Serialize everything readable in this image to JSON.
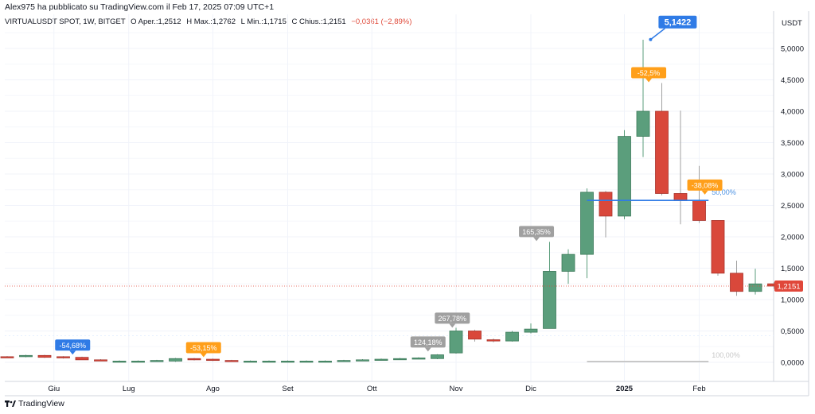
{
  "header": {
    "text": "Alex975 ha pubblicato su TradingView.com il Feb 17, 2025 07:09 UTC+1"
  },
  "legend": {
    "symbol": "VIRTUALUSDT SPOT, 1W, BITGET",
    "open_label": "O",
    "open_value": "Aper.:1,2512",
    "high_label": "H",
    "high_value": "Max.:1,2762",
    "low_label": "L",
    "low_value": "Min.:1,1715",
    "close_label": "C",
    "close_value": "Chius.:1,2151",
    "change": "−0,0361 (−2,89%)"
  },
  "axis": {
    "currency": "USDT"
  },
  "brand": {
    "name": "TradingView"
  },
  "colors": {
    "up": "#5b9e7c",
    "down": "#d9483b",
    "blue": "#2f7be6",
    "orange": "#ff9f1a",
    "gray": "#a0a0a0",
    "last_price": "#e0473a"
  },
  "chart_data": {
    "type": "candlestick",
    "interval": "1W",
    "y_axis": {
      "position": "right",
      "min": 0,
      "max": 5.25,
      "ticks": [
        0,
        0.5,
        1,
        1.5,
        2,
        2.5,
        3,
        3.5,
        4,
        4.5,
        5
      ],
      "tick_labels": [
        "0,0000",
        "0,5000",
        "1,0000",
        "1,5000",
        "2,0000",
        "2,5000",
        "3,0000",
        "3,5000",
        "4,0000",
        "4,5000",
        "5,0000"
      ]
    },
    "x_axis": {
      "labels": [
        {
          "text": "Giu",
          "index": 2.5
        },
        {
          "text": "Lug",
          "index": 6.5
        },
        {
          "text": "Ago",
          "index": 11
        },
        {
          "text": "Set",
          "index": 15
        },
        {
          "text": "Ott",
          "index": 19.5
        },
        {
          "text": "Nov",
          "index": 24
        },
        {
          "text": "Dic",
          "index": 28
        },
        {
          "text": "2025",
          "index": 33,
          "bold": true
        },
        {
          "text": "Feb",
          "index": 37
        }
      ]
    },
    "candles": [
      {
        "o": 0.09,
        "h": 0.1,
        "l": 0.07,
        "c": 0.08
      },
      {
        "o": 0.09,
        "h": 0.12,
        "l": 0.08,
        "c": 0.11
      },
      {
        "o": 0.11,
        "h": 0.12,
        "l": 0.07,
        "c": 0.08
      },
      {
        "o": 0.09,
        "h": 0.1,
        "l": 0.06,
        "c": 0.08
      },
      {
        "o": 0.08,
        "h": 0.09,
        "l": 0.05,
        "c": 0.04
      },
      {
        "o": 0.04,
        "h": 0.05,
        "l": 0.03,
        "c": 0.03
      },
      {
        "o": 0.02,
        "h": 0.03,
        "l": 0.01,
        "c": 0.02
      },
      {
        "o": 0.02,
        "h": 0.03,
        "l": 0.01,
        "c": 0.02
      },
      {
        "o": 0.02,
        "h": 0.04,
        "l": 0.01,
        "c": 0.03
      },
      {
        "o": 0.02,
        "h": 0.07,
        "l": 0.01,
        "c": 0.06
      },
      {
        "o": 0.06,
        "h": 0.07,
        "l": 0.03,
        "c": 0.04
      },
      {
        "o": 0.05,
        "h": 0.06,
        "l": 0.02,
        "c": 0.03
      },
      {
        "o": 0.03,
        "h": 0.04,
        "l": 0.01,
        "c": 0.02
      },
      {
        "o": 0.02,
        "h": 0.03,
        "l": 0.01,
        "c": 0.02
      },
      {
        "o": 0.02,
        "h": 0.03,
        "l": 0.01,
        "c": 0.02
      },
      {
        "o": 0.02,
        "h": 0.03,
        "l": 0.01,
        "c": 0.02
      },
      {
        "o": 0.02,
        "h": 0.03,
        "l": 0.01,
        "c": 0.02
      },
      {
        "o": 0.02,
        "h": 0.03,
        "l": 0.01,
        "c": 0.02
      },
      {
        "o": 0.02,
        "h": 0.04,
        "l": 0.01,
        "c": 0.03
      },
      {
        "o": 0.03,
        "h": 0.05,
        "l": 0.02,
        "c": 0.04
      },
      {
        "o": 0.04,
        "h": 0.06,
        "l": 0.03,
        "c": 0.05
      },
      {
        "o": 0.05,
        "h": 0.07,
        "l": 0.04,
        "c": 0.06
      },
      {
        "o": 0.06,
        "h": 0.08,
        "l": 0.05,
        "c": 0.07
      },
      {
        "o": 0.06,
        "h": 0.13,
        "l": 0.05,
        "c": 0.12
      },
      {
        "o": 0.15,
        "h": 0.55,
        "l": 0.14,
        "c": 0.5
      },
      {
        "o": 0.5,
        "h": 0.52,
        "l": 0.33,
        "c": 0.37
      },
      {
        "o": 0.36,
        "h": 0.38,
        "l": 0.32,
        "c": 0.34
      },
      {
        "o": 0.34,
        "h": 0.5,
        "l": 0.33,
        "c": 0.48
      },
      {
        "o": 0.48,
        "h": 0.62,
        "l": 0.46,
        "c": 0.53
      },
      {
        "o": 0.54,
        "h": 1.92,
        "l": 0.54,
        "c": 1.45
      },
      {
        "o": 1.45,
        "h": 1.8,
        "l": 1.25,
        "c": 1.72
      },
      {
        "o": 1.72,
        "h": 2.77,
        "l": 1.34,
        "c": 2.71
      },
      {
        "o": 2.71,
        "h": 2.73,
        "l": 1.99,
        "c": 2.33
      },
      {
        "o": 2.33,
        "h": 3.7,
        "l": 2.28,
        "c": 3.6
      },
      {
        "o": 3.6,
        "h": 5.14,
        "l": 3.27,
        "c": 4.0
      },
      {
        "o": 4.0,
        "h": 4.45,
        "l": 2.66,
        "c": 2.69
      },
      {
        "o": 2.69,
        "h": 4.01,
        "l": 2.2,
        "c": 2.58
      },
      {
        "o": 2.58,
        "h": 3.13,
        "l": 2.22,
        "c": 2.26
      },
      {
        "o": 2.26,
        "h": 2.26,
        "l": 1.38,
        "c": 1.42
      },
      {
        "o": 1.42,
        "h": 1.62,
        "l": 1.06,
        "c": 1.13
      },
      {
        "o": 1.13,
        "h": 1.49,
        "l": 1.08,
        "c": 1.25
      },
      {
        "o": 1.2512,
        "h": 1.2762,
        "l": 1.1715,
        "c": 1.2151
      }
    ],
    "annotations": [
      {
        "text": "-54,68%",
        "index": 3.5,
        "price": 0.11,
        "color": "blue",
        "pointer": "down"
      },
      {
        "text": "-53,15%",
        "index": 10.5,
        "price": 0.07,
        "color": "orange",
        "pointer": "down"
      },
      {
        "text": "124,18%",
        "index": 22.5,
        "price": 0.16,
        "color": "gray",
        "pointer": "down"
      },
      {
        "text": "267,78%",
        "index": 23.8,
        "price": 0.54,
        "color": "gray",
        "pointer": "down"
      },
      {
        "text": "165,35%",
        "index": 28.3,
        "price": 1.92,
        "color": "gray",
        "pointer": "down"
      },
      {
        "text": "-52,5%",
        "index": 34.3,
        "price": 4.45,
        "color": "orange",
        "pointer": "down"
      },
      {
        "text": "-38,08%",
        "index": 37.3,
        "price": 2.66,
        "color": "orange",
        "pointer": "down"
      },
      {
        "text": "5,1422",
        "index": 34.4,
        "price": 5.1422,
        "color": "blue",
        "pointer": "highlight"
      }
    ],
    "hline": {
      "price": 2.58,
      "from_index": 31,
      "to_index": 37.5,
      "label": "50,00%",
      "color": "blue"
    },
    "hline_low": {
      "price": 0.0,
      "from_index": 31,
      "to_index": 37.5,
      "label": "100,00%",
      "color": "gray"
    },
    "last_price": {
      "value": 1.2151,
      "label": "1,2151"
    }
  }
}
